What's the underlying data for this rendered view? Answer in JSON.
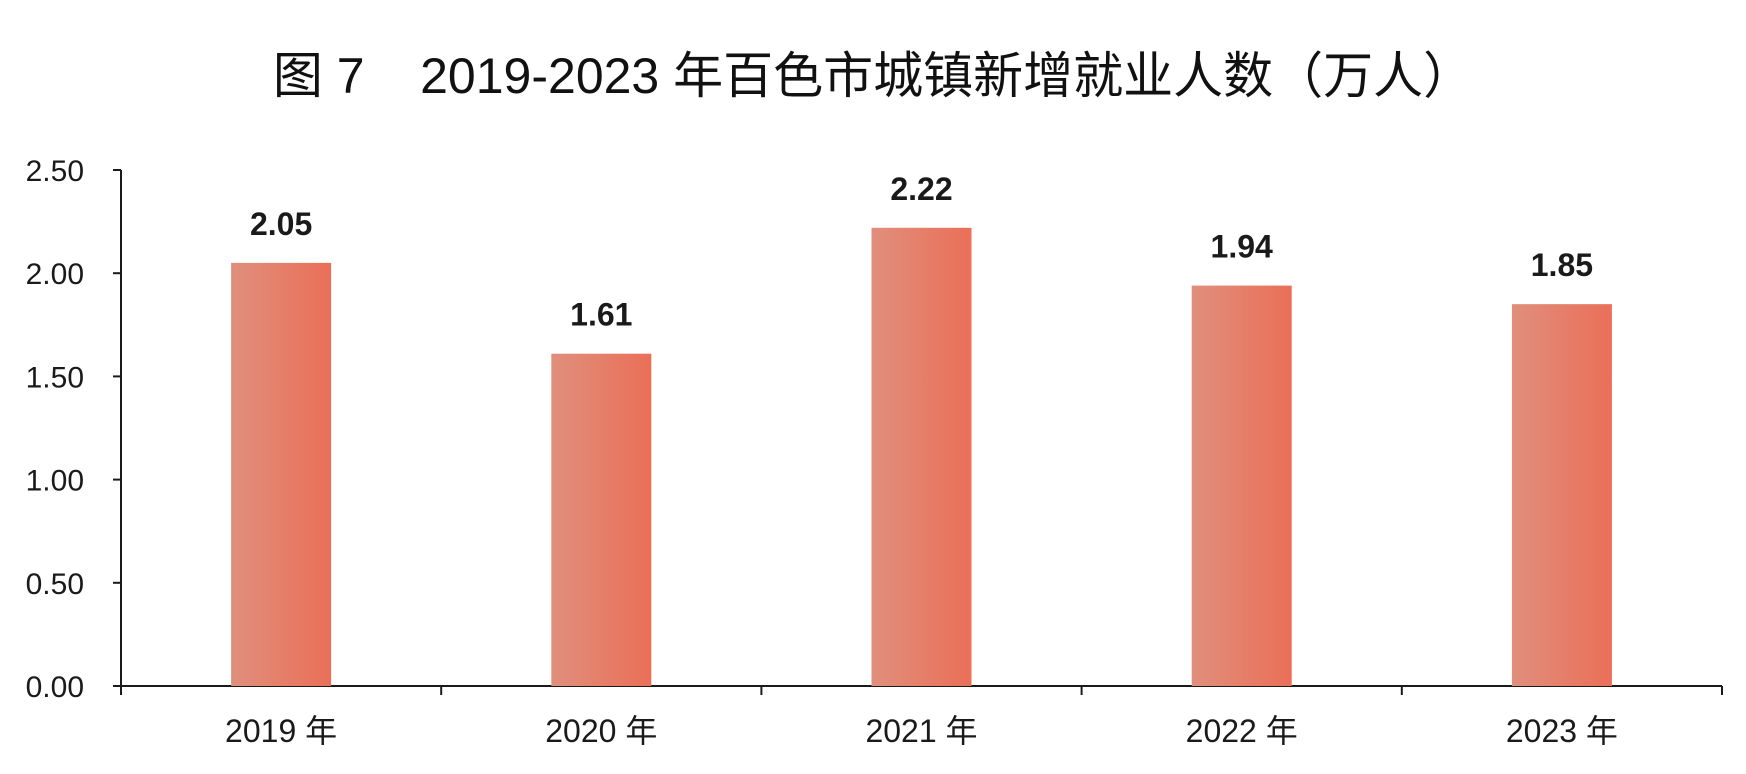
{
  "chart_data": {
    "type": "bar",
    "title": "图 7    2019-2023 年百色市城镇新增就业人数（万人）",
    "categories": [
      "2019 年",
      "2020 年",
      "2021 年",
      "2022 年",
      "2023 年"
    ],
    "values": [
      2.05,
      1.61,
      2.22,
      1.94,
      1.85
    ],
    "value_labels": [
      "2.05",
      "1.61",
      "2.22",
      "1.94",
      "1.85"
    ],
    "yticks": [
      0,
      0.5,
      1.0,
      1.5,
      2.0,
      2.5
    ],
    "ytick_labels": [
      "0.00",
      "0.50",
      "1.00",
      "1.50",
      "2.00",
      "2.50"
    ],
    "ylim": [
      0,
      2.5
    ],
    "xlabel": "",
    "ylabel": "",
    "grid": false,
    "legend": "none",
    "colors": {
      "bar_light": "#E08F7C",
      "bar_dark": "#EA6F58",
      "axis": "#1a1a1a",
      "text": "#111111"
    }
  }
}
